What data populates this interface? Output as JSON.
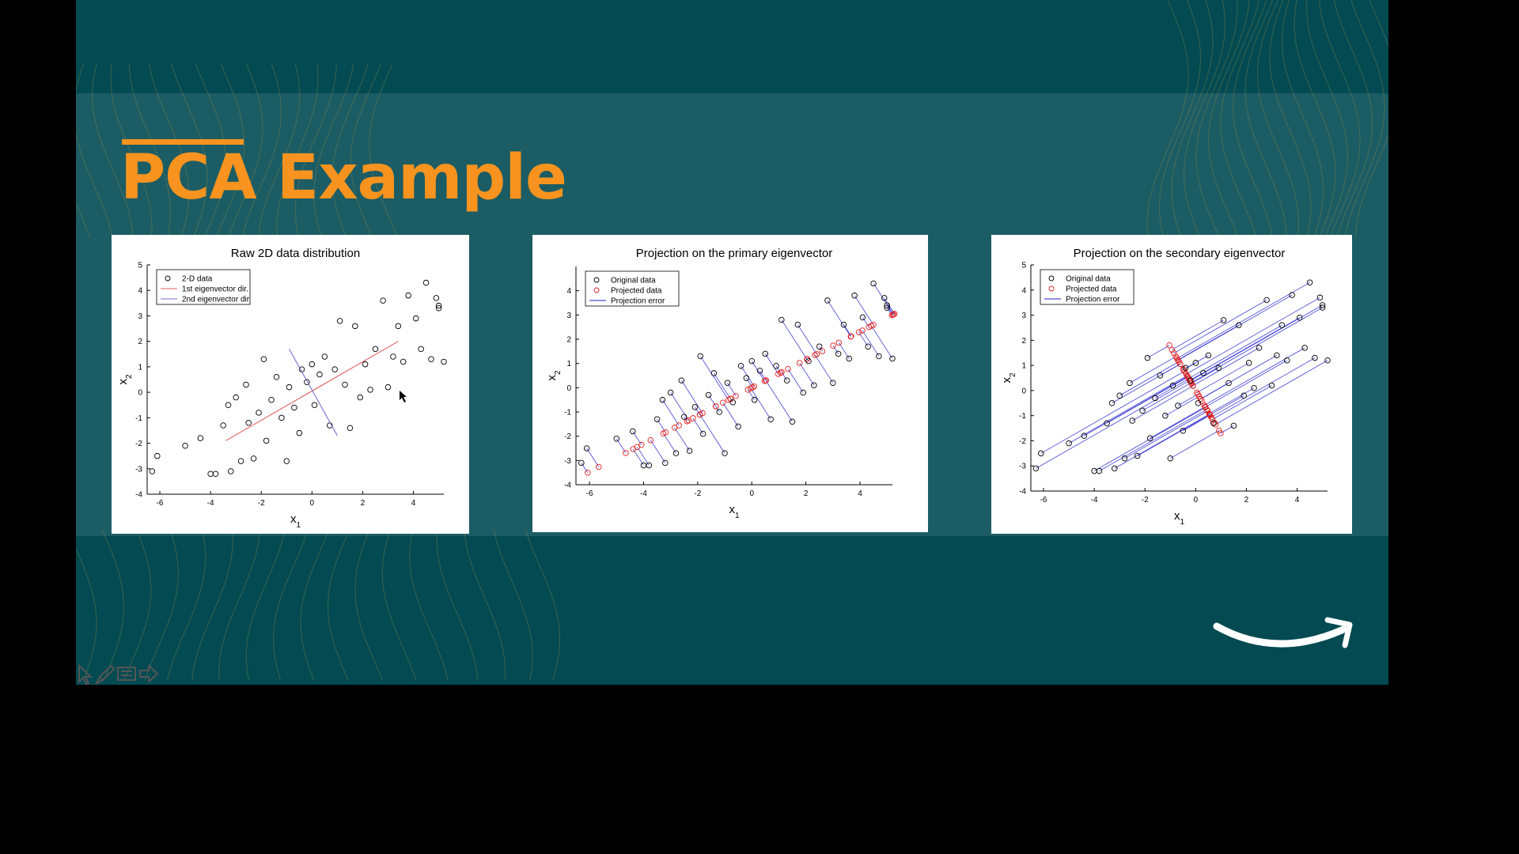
{
  "slide": {
    "title": "PCA Example",
    "accent_color": "#f7931e",
    "background_color": "#034a52",
    "logo": "amazon-smile-logo"
  },
  "toolbar": {
    "icons": [
      "pointer-icon",
      "pen-icon",
      "slides-icon",
      "next-icon"
    ]
  },
  "chart_data": [
    {
      "type": "scatter",
      "title": "Raw 2D data distribution",
      "xlabel": "x1",
      "ylabel": "x2",
      "xlim": [
        -6.5,
        5.2
      ],
      "ylim": [
        -4,
        5
      ],
      "xticks": [
        "-6",
        "-4",
        "-2",
        "0",
        "2",
        "4"
      ],
      "yticks": [
        "-4",
        "-3",
        "-2",
        "-1",
        "0",
        "1",
        "2",
        "3",
        "4",
        "5"
      ],
      "legend": {
        "placement": "top-left",
        "entries": [
          "2-D data",
          "1st eigenvector dir.",
          "2nd eigenvector dir"
        ]
      },
      "series": [
        {
          "name": "2-D data",
          "marker": "circle",
          "color": "#000000",
          "points": [
            [
              -6.3,
              -3.1
            ],
            [
              -6.1,
              -2.5
            ],
            [
              -5.0,
              -2.1
            ],
            [
              -4.4,
              -1.8
            ],
            [
              -4.0,
              -3.2
            ],
            [
              -3.8,
              -3.2
            ],
            [
              -3.5,
              -1.3
            ],
            [
              -3.3,
              -0.5
            ],
            [
              -3.2,
              -3.1
            ],
            [
              -3.0,
              -0.2
            ],
            [
              -2.8,
              -2.7
            ],
            [
              -2.6,
              0.3
            ],
            [
              -2.5,
              -1.2
            ],
            [
              -2.3,
              -2.6
            ],
            [
              -2.1,
              -0.8
            ],
            [
              -1.9,
              1.3
            ],
            [
              -1.8,
              -1.9
            ],
            [
              -1.6,
              -0.3
            ],
            [
              -1.4,
              0.6
            ],
            [
              -1.2,
              -1.0
            ],
            [
              -1.0,
              -2.7
            ],
            [
              -0.9,
              0.2
            ],
            [
              -0.7,
              -0.6
            ],
            [
              -0.5,
              -1.6
            ],
            [
              -0.4,
              0.9
            ],
            [
              -0.2,
              0.4
            ],
            [
              0.0,
              1.1
            ],
            [
              0.1,
              -0.5
            ],
            [
              0.3,
              0.7
            ],
            [
              0.5,
              1.4
            ],
            [
              0.7,
              -1.3
            ],
            [
              0.9,
              0.9
            ],
            [
              1.1,
              2.8
            ],
            [
              1.3,
              0.3
            ],
            [
              1.5,
              -1.4
            ],
            [
              1.7,
              2.6
            ],
            [
              1.9,
              -0.2
            ],
            [
              2.1,
              1.1
            ],
            [
              2.3,
              0.1
            ],
            [
              2.5,
              1.7
            ],
            [
              2.8,
              3.6
            ],
            [
              3.0,
              0.2
            ],
            [
              3.2,
              1.4
            ],
            [
              3.4,
              2.6
            ],
            [
              3.6,
              1.2
            ],
            [
              3.8,
              3.8
            ],
            [
              4.1,
              2.9
            ],
            [
              4.3,
              1.7
            ],
            [
              4.5,
              4.3
            ],
            [
              4.7,
              1.3
            ],
            [
              4.9,
              3.7
            ],
            [
              5.0,
              3.3
            ],
            [
              5.0,
              3.4
            ],
            [
              5.2,
              1.2
            ]
          ]
        },
        {
          "name": "1st eigenvector dir.",
          "type": "line",
          "color": "#e06060",
          "points": [
            [
              -3.4,
              -1.9
            ],
            [
              3.4,
              2.0
            ]
          ]
        },
        {
          "name": "2nd eigenvector dir",
          "type": "line",
          "color": "#7070d0",
          "points": [
            [
              -0.9,
              1.7
            ],
            [
              1.0,
              -1.7
            ]
          ]
        }
      ]
    },
    {
      "type": "scatter",
      "title": "Projection on the primary eigenvector",
      "xlabel": "x1",
      "ylabel": "x2",
      "xlim": [
        -6.5,
        5.2
      ],
      "ylim": [
        -4,
        5
      ],
      "xticks": [
        "-6",
        "-4",
        "-2",
        "0",
        "2",
        "4"
      ],
      "yticks": [
        "-4",
        "-3",
        "-2",
        "-1",
        "0",
        "1",
        "2",
        "3",
        "4"
      ],
      "legend": {
        "placement": "top-left",
        "entries": [
          "Original data",
          "Projected data",
          "Projection error"
        ]
      },
      "projection_axis": [
        0.866,
        0.5
      ],
      "series": [
        {
          "name": "Original data",
          "marker": "circle",
          "color": "#000000"
        },
        {
          "name": "Projected data",
          "marker": "circle",
          "color": "#e02020"
        },
        {
          "name": "Projection error",
          "type": "line",
          "color": "#2020cc"
        }
      ]
    },
    {
      "type": "scatter",
      "title": "Projection on the secondary eigenvector",
      "xlabel": "x1",
      "ylabel": "x2",
      "xlim": [
        -6.5,
        5.2
      ],
      "ylim": [
        -4,
        5
      ],
      "xticks": [
        "-6",
        "-4",
        "-2",
        "0",
        "2",
        "4"
      ],
      "yticks": [
        "-4",
        "-3",
        "-2",
        "-1",
        "0",
        "1",
        "2",
        "3",
        "4",
        "5"
      ],
      "legend": {
        "placement": "top-left",
        "entries": [
          "Original data",
          "Projected data",
          "Projection error"
        ]
      },
      "projection_axis": [
        -0.5,
        0.866
      ],
      "series": [
        {
          "name": "Original data",
          "marker": "circle",
          "color": "#000000"
        },
        {
          "name": "Projected data",
          "marker": "circle",
          "color": "#e02020"
        },
        {
          "name": "Projection error",
          "type": "line",
          "color": "#2020cc"
        }
      ]
    }
  ]
}
